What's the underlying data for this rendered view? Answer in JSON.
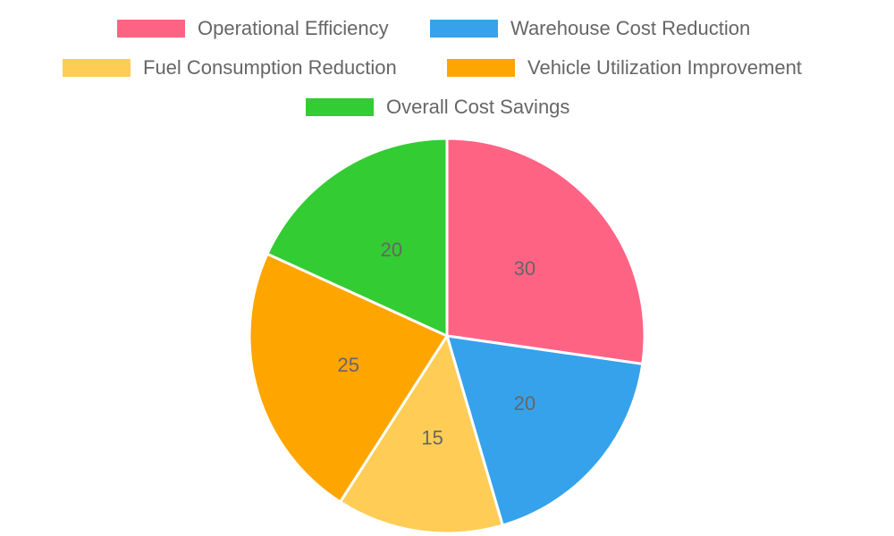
{
  "chart_data": {
    "type": "pie",
    "categories": [
      "Operational Efficiency",
      "Warehouse Cost Reduction",
      "Fuel Consumption Reduction",
      "Vehicle Utilization Improvement",
      "Overall Cost Savings"
    ],
    "values": [
      30,
      20,
      15,
      25,
      20
    ],
    "data_labels": [
      "30",
      "20",
      "15",
      "25",
      "20"
    ],
    "colors": [
      "#ff6384",
      "#36a2eb",
      "#ffcd56",
      "#ffa500",
      "#33cc33"
    ],
    "legend_position": "top",
    "title": ""
  }
}
